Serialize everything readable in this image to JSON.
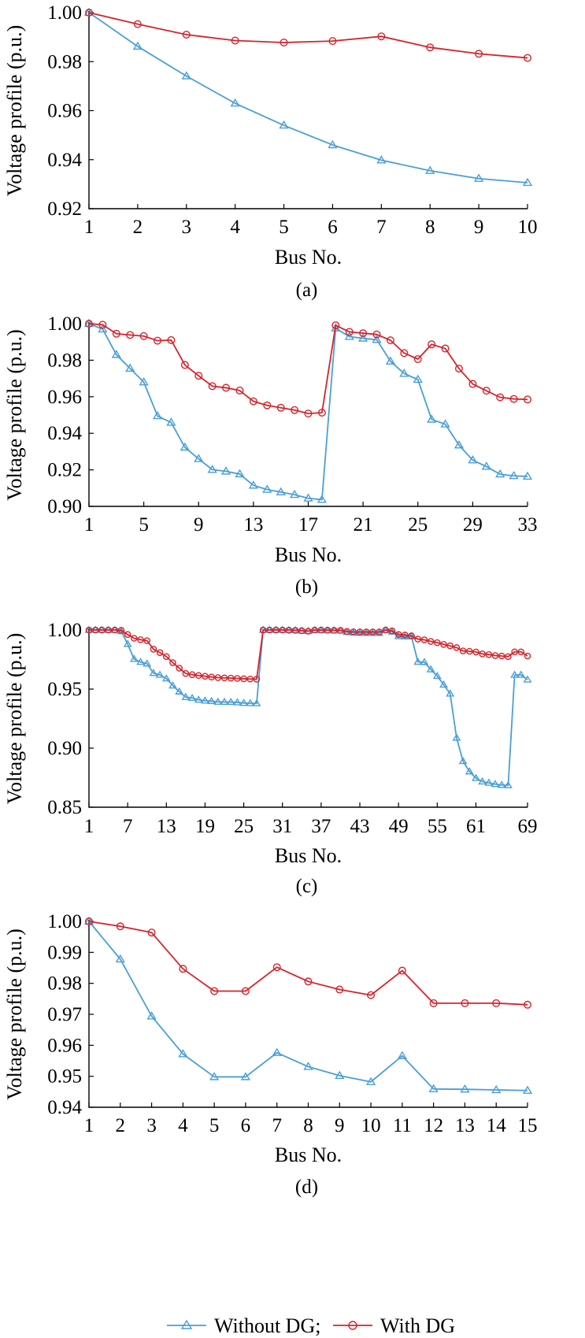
{
  "legend": {
    "items": [
      {
        "series": "without",
        "label": "Without DG;",
        "color": "#4a9fd5",
        "marker": "triangle"
      },
      {
        "series": "with",
        "label": "With DG",
        "color": "#d4242c",
        "marker": "circle"
      }
    ]
  },
  "chart_data": [
    {
      "panel": "(a)",
      "type": "line",
      "xlabel": "Bus No.",
      "ylabel": "Voltage profile (p.u.)",
      "ylim": [
        0.92,
        1.0
      ],
      "yticks": [
        "0.92",
        "0.94",
        "0.96",
        "0.98",
        "1.00"
      ],
      "xlim": [
        1,
        10
      ],
      "xticks": [
        1,
        2,
        3,
        4,
        5,
        6,
        7,
        8,
        9,
        10
      ],
      "x": [
        1,
        2,
        3,
        4,
        5,
        6,
        7,
        8,
        9,
        10
      ],
      "series": [
        {
          "key": "without",
          "values": [
            1.0,
            0.9862,
            0.9741,
            0.963,
            0.954,
            0.946,
            0.9398,
            0.9355,
            0.9323,
            0.9306
          ]
        },
        {
          "key": "with",
          "values": [
            1.0,
            0.9953,
            0.991,
            0.9886,
            0.9878,
            0.9884,
            0.9903,
            0.9858,
            0.9832,
            0.9815
          ]
        }
      ]
    },
    {
      "panel": "(b)",
      "type": "line",
      "xlabel": "Bus No.",
      "ylabel": "Voltage profile (p.u.)",
      "ylim": [
        0.9,
        1.0
      ],
      "yticks": [
        "0.90",
        "0.92",
        "0.94",
        "0.96",
        "0.98",
        "1.00"
      ],
      "xlim": [
        1,
        33
      ],
      "xticks": [
        1,
        5,
        9,
        13,
        17,
        21,
        25,
        29,
        33
      ],
      "x": [
        1,
        2,
        3,
        4,
        5,
        6,
        7,
        8,
        9,
        10,
        11,
        12,
        13,
        14,
        15,
        16,
        17,
        18,
        19,
        20,
        21,
        22,
        23,
        24,
        25,
        26,
        27,
        28,
        29,
        30,
        31,
        32,
        33
      ],
      "series": [
        {
          "key": "without",
          "values": [
            1.0,
            0.997,
            0.983,
            0.9755,
            0.968,
            0.9495,
            0.9459,
            0.9323,
            0.926,
            0.9201,
            0.9192,
            0.9177,
            0.9115,
            0.9092,
            0.9078,
            0.9064,
            0.9044,
            0.9037,
            0.9975,
            0.9929,
            0.992,
            0.9912,
            0.9794,
            0.9727,
            0.9694,
            0.9476,
            0.945,
            0.9335,
            0.9253,
            0.9218,
            0.9176,
            0.9167,
            0.9164
          ]
        },
        {
          "key": "with",
          "values": [
            1.0,
            0.9994,
            0.9945,
            0.9938,
            0.9932,
            0.9907,
            0.991,
            0.9774,
            0.9715,
            0.9658,
            0.9649,
            0.9634,
            0.9575,
            0.9553,
            0.954,
            0.9527,
            0.9508,
            0.9513,
            0.9991,
            0.9955,
            0.9948,
            0.9941,
            0.9909,
            0.9839,
            0.9806,
            0.9887,
            0.9864,
            0.9754,
            0.967,
            0.9633,
            0.9597,
            0.9588,
            0.9585
          ]
        }
      ]
    },
    {
      "panel": "(c)",
      "type": "line",
      "xlabel": "Bus No.",
      "ylabel": "Voltage profile (p.u.)",
      "ylim": [
        0.85,
        1.0
      ],
      "yticks": [
        "0.85",
        "0.90",
        "0.95",
        "1.00"
      ],
      "xlim": [
        1,
        69
      ],
      "xticks": [
        1,
        7,
        13,
        19,
        25,
        31,
        37,
        43,
        49,
        55,
        61,
        69
      ],
      "x": [
        1,
        2,
        3,
        4,
        5,
        6,
        7,
        8,
        9,
        10,
        11,
        12,
        13,
        14,
        15,
        16,
        17,
        18,
        19,
        20,
        21,
        22,
        23,
        24,
        25,
        26,
        27,
        28,
        29,
        30,
        31,
        32,
        33,
        34,
        35,
        36,
        37,
        38,
        39,
        40,
        41,
        42,
        43,
        44,
        45,
        46,
        47,
        48,
        49,
        50,
        51,
        52,
        53,
        54,
        55,
        56,
        57,
        58,
        59,
        60,
        61,
        62,
        63,
        64,
        65,
        66,
        67,
        68,
        69
      ],
      "series": [
        {
          "key": "without",
          "values": [
            1.0,
            1.0,
            1.0,
            1.0,
            0.9999,
            0.9989,
            0.9881,
            0.9754,
            0.9729,
            0.9715,
            0.9635,
            0.962,
            0.9589,
            0.9529,
            0.9478,
            0.9432,
            0.9424,
            0.9409,
            0.9402,
            0.9398,
            0.9392,
            0.9391,
            0.939,
            0.9387,
            0.9382,
            0.938,
            0.9379,
            1.0,
            1.0,
            1.0,
            1.0,
            0.9999,
            0.9998,
            0.9993,
            0.999,
            0.9998,
            0.9997,
            0.9996,
            0.9995,
            0.9994,
            0.9982,
            0.9977,
            0.9974,
            0.9974,
            0.9974,
            0.9974,
            0.9998,
            0.9985,
            0.9947,
            0.9944,
            0.9945,
            0.973,
            0.9728,
            0.9666,
            0.961,
            0.9537,
            0.9461,
            0.9087,
            0.8889,
            0.8802,
            0.8746,
            0.8717,
            0.8706,
            0.8695,
            0.8688,
            0.8685,
            0.962,
            0.962,
            0.958
          ]
        },
        {
          "key": "with",
          "values": [
            1.0,
            1.0,
            1.0,
            1.0,
            1.0,
            0.9998,
            0.9962,
            0.993,
            0.9918,
            0.991,
            0.9838,
            0.9809,
            0.9775,
            0.9724,
            0.9677,
            0.9632,
            0.9622,
            0.9615,
            0.9609,
            0.9602,
            0.9597,
            0.9595,
            0.9593,
            0.959,
            0.9587,
            0.9585,
            0.9584,
            1.0,
            1.0,
            1.0,
            1.0,
            0.9999,
            0.9997,
            0.9994,
            0.999,
            1.0,
            1.0,
            0.9999,
            0.9998,
            0.9997,
            0.9988,
            0.9985,
            0.9984,
            0.9984,
            0.9984,
            0.9984,
            1.0,
            0.9993,
            0.9962,
            0.9958,
            0.9951,
            0.9923,
            0.9917,
            0.9904,
            0.9893,
            0.9878,
            0.9866,
            0.9851,
            0.9823,
            0.982,
            0.9814,
            0.9798,
            0.9792,
            0.9784,
            0.978,
            0.9775,
            0.9815,
            0.9815,
            0.978
          ]
        }
      ]
    },
    {
      "panel": "(d)",
      "type": "line",
      "xlabel": "Bus No.",
      "ylabel": "Voltage profile (p.u.)",
      "ylim": [
        0.94,
        1.0
      ],
      "yticks": [
        "0.94",
        "0.95",
        "0.96",
        "0.97",
        "0.98",
        "0.99",
        "1.00"
      ],
      "xlim": [
        1,
        15
      ],
      "xticks": [
        1,
        2,
        3,
        4,
        5,
        6,
        7,
        8,
        9,
        10,
        11,
        12,
        13,
        14,
        15
      ],
      "x": [
        1,
        2,
        3,
        4,
        5,
        6,
        7,
        8,
        9,
        10,
        11,
        12,
        13,
        14,
        15
      ],
      "series": [
        {
          "key": "without",
          "values": [
            1.0,
            0.9878,
            0.9694,
            0.9572,
            0.9498,
            0.9498,
            0.9576,
            0.9531,
            0.9502,
            0.9482,
            0.9566,
            0.9459,
            0.9458,
            0.9456,
            0.9454
          ]
        },
        {
          "key": "with",
          "values": [
            1.0,
            0.9984,
            0.9964,
            0.9847,
            0.9775,
            0.9775,
            0.9852,
            0.9806,
            0.978,
            0.9762,
            0.9841,
            0.9736,
            0.9736,
            0.9736,
            0.9731
          ]
        }
      ]
    }
  ]
}
